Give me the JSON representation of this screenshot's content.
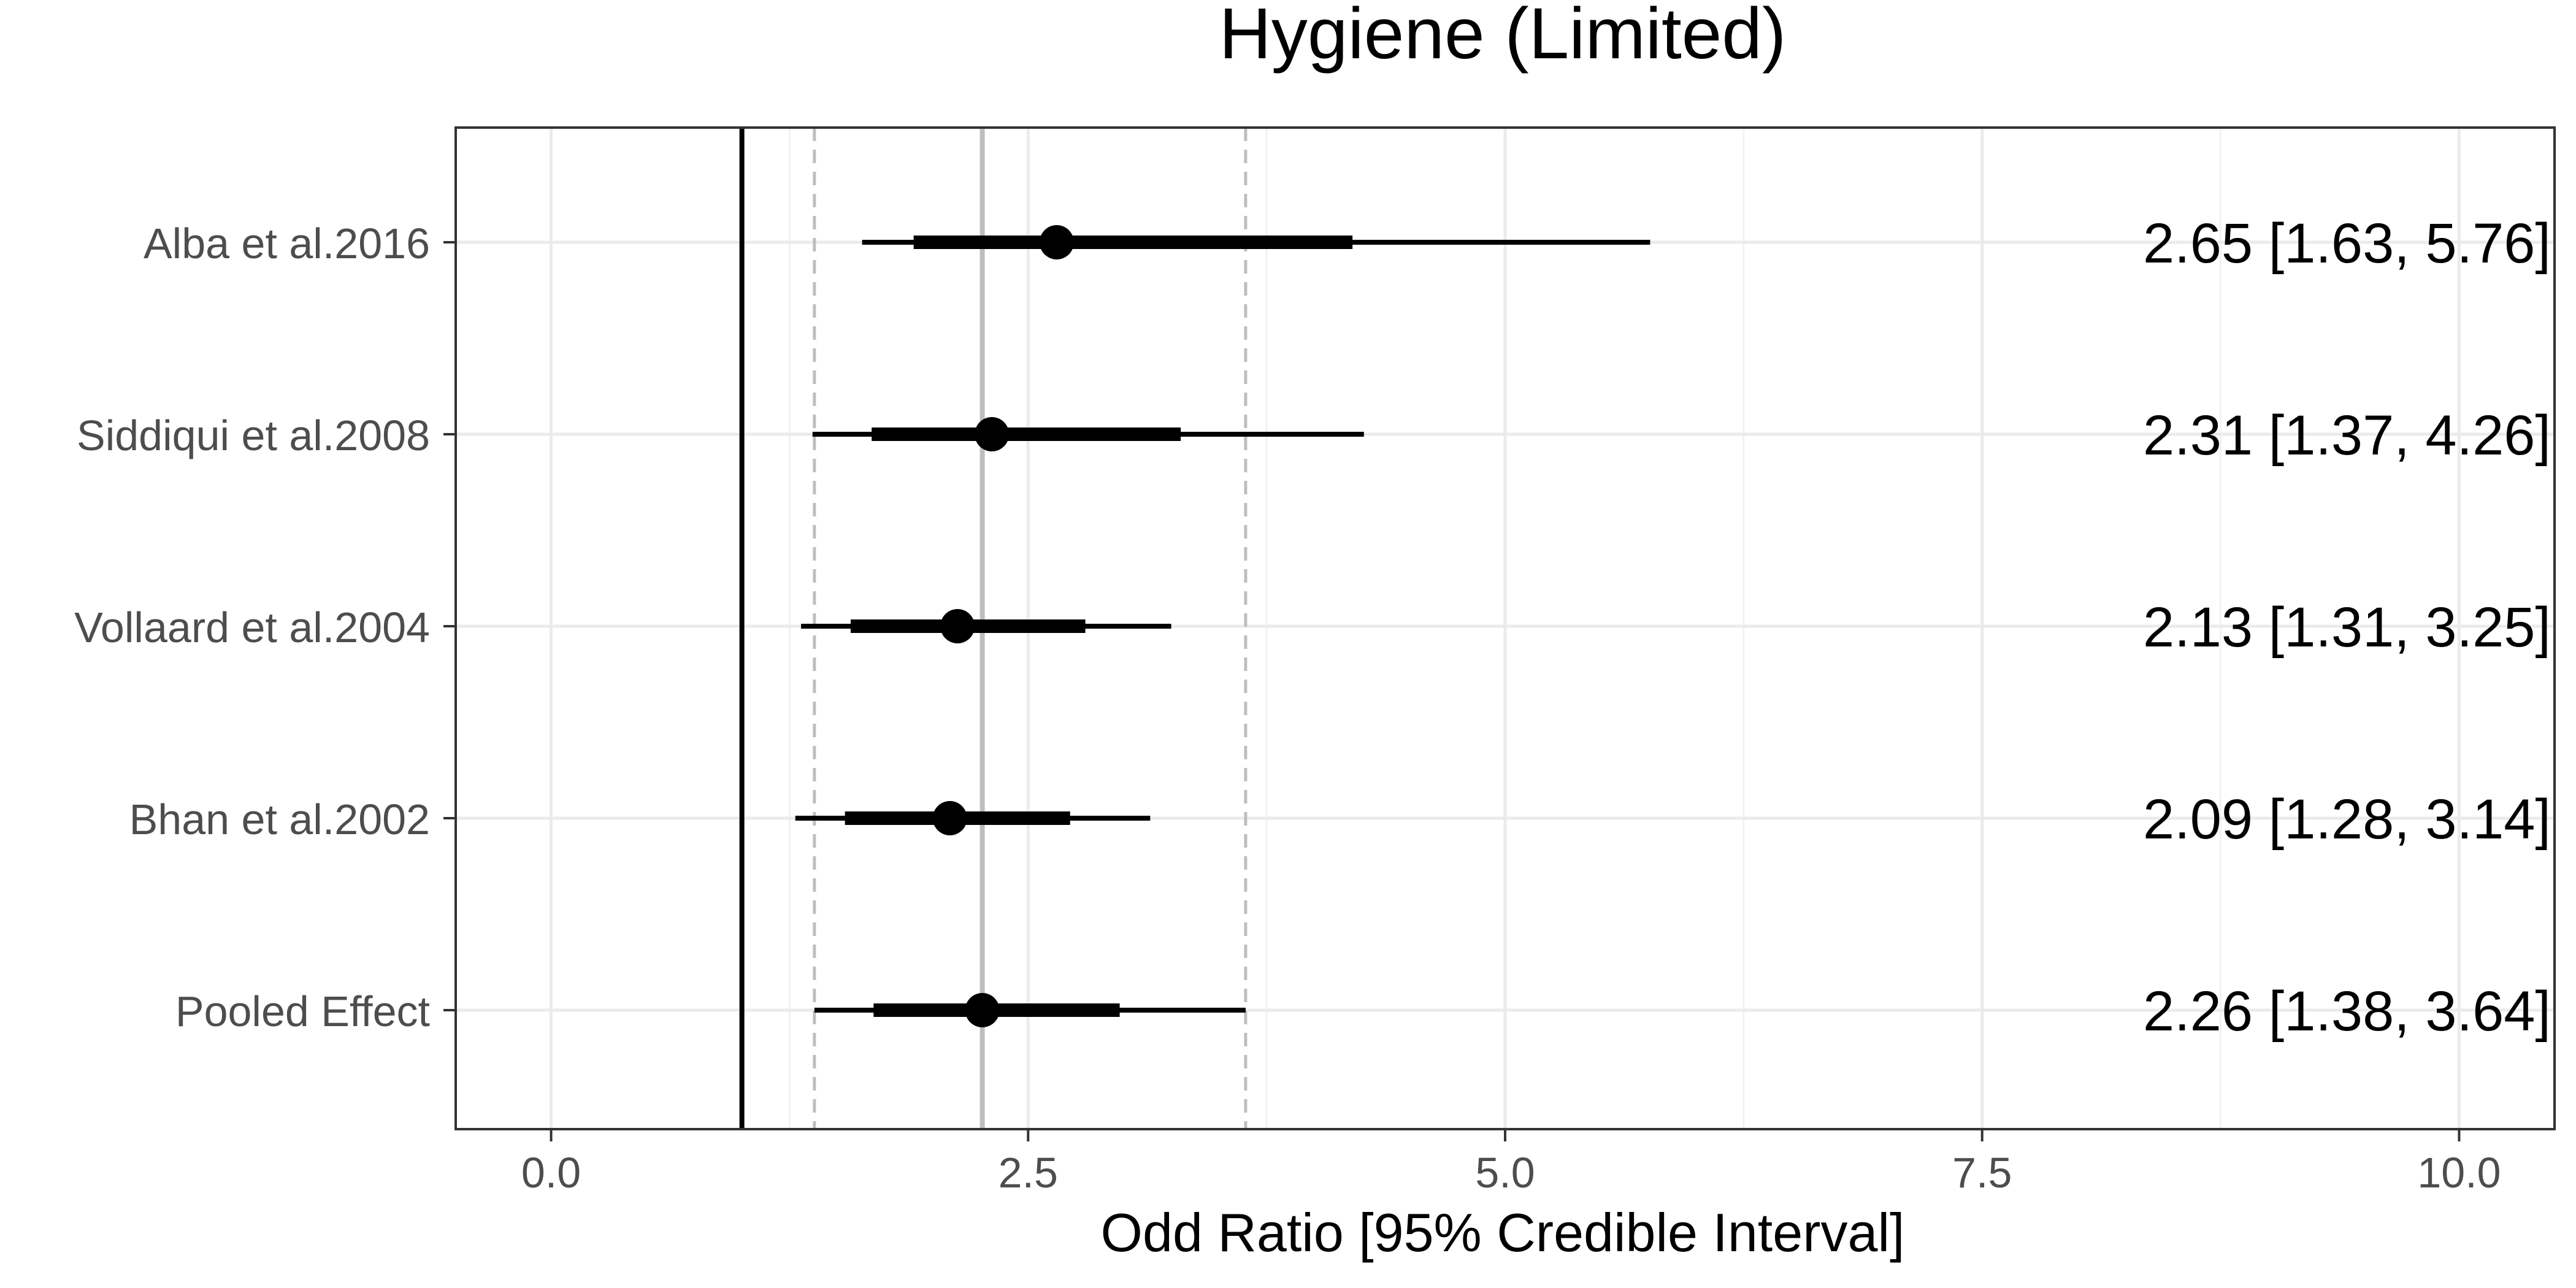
{
  "chart_data": {
    "type": "forest",
    "title": "Hygiene (Limited)",
    "xlabel": "Odd Ratio [95% Credible Interval]",
    "ylabel": "",
    "xlim": [
      -0.5,
      10.5
    ],
    "x_ticks": [
      0,
      2.5,
      5,
      7.5,
      10
    ],
    "x_tick_labels": [
      "0.0",
      "2.5",
      "5.0",
      "7.5",
      "10.0"
    ],
    "reference_line": 1,
    "pooled_band": {
      "estimate": 2.26,
      "lower": 1.38,
      "upper": 3.64
    },
    "grid": true,
    "colors": {
      "marks": "#000000",
      "grid": "#ebebeb",
      "pooled_lines": "#bebebe",
      "axis_text": "#4d4d4d"
    },
    "studies": [
      {
        "label": "Alba et al.2016",
        "estimate": 2.65,
        "inner_lower": 1.9,
        "inner_upper": 4.2,
        "lower": 1.63,
        "upper": 5.76,
        "text": "2.65 [1.63, 5.76]"
      },
      {
        "label": "Siddiqui et al.2008",
        "estimate": 2.31,
        "inner_lower": 1.68,
        "inner_upper": 3.3,
        "lower": 1.37,
        "upper": 4.26,
        "text": "2.31 [1.37, 4.26]"
      },
      {
        "label": "Vollaard et al.2004",
        "estimate": 2.13,
        "inner_lower": 1.57,
        "inner_upper": 2.8,
        "lower": 1.31,
        "upper": 3.25,
        "text": "2.13 [1.31, 3.25]"
      },
      {
        "label": "Bhan et al.2002",
        "estimate": 2.09,
        "inner_lower": 1.54,
        "inner_upper": 2.72,
        "lower": 1.28,
        "upper": 3.14,
        "text": "2.09 [1.28, 3.14]"
      },
      {
        "label": "Pooled Effect",
        "estimate": 2.26,
        "inner_lower": 1.69,
        "inner_upper": 2.98,
        "lower": 1.38,
        "upper": 3.64,
        "text": "2.26 [1.38, 3.64]"
      }
    ]
  }
}
